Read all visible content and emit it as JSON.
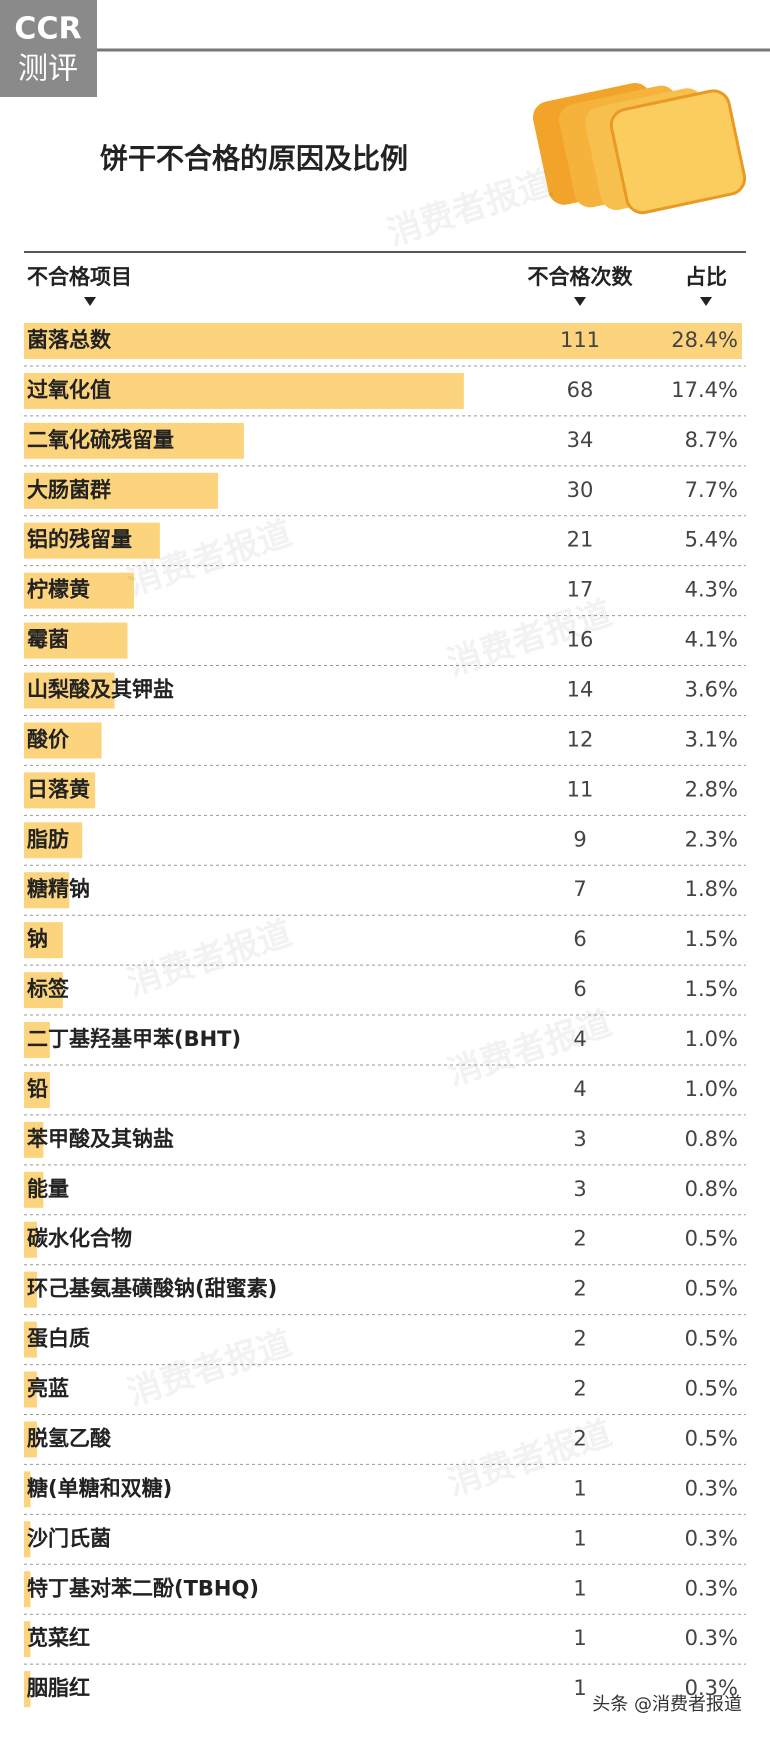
{
  "logo": {
    "top": "CCR",
    "bottom": "测评"
  },
  "watermark": "消费者报道",
  "footer": "头条 @消费者报道",
  "chart_data": {
    "type": "bar",
    "orientation": "horizontal",
    "title": "饼干不合格的原因及比例",
    "category_label": "不合格项目",
    "categories": [
      "菌落总数",
      "过氧化值",
      "二氧化硫残留量",
      "大肠菌群",
      "铝的残留量",
      "柠檬黄",
      "霉菌",
      "山梨酸及其钾盐",
      "酸价",
      "日落黄",
      "脂肪",
      "糖精钠",
      "钠",
      "标签",
      "二丁基羟基甲苯(BHT)",
      "铅",
      "苯甲酸及其钠盐",
      "能量",
      "碳水化合物",
      "环己基氨基磺酸钠(甜蜜素)",
      "蛋白质",
      "亮蓝",
      "脱氢乙酸",
      "糖(单糖和双糖)",
      "沙门氏菌",
      "特丁基对苯二酚(TBHQ)",
      "苋菜红",
      "胭脂红"
    ],
    "color": "#fcd47e",
    "series": [
      {
        "name": "不合格次数",
        "values": [
          111,
          68,
          34,
          30,
          21,
          17,
          16,
          14,
          12,
          11,
          9,
          7,
          6,
          6,
          4,
          4,
          3,
          3,
          2,
          2,
          2,
          2,
          2,
          1,
          1,
          1,
          1,
          1
        ]
      },
      {
        "name": "占比",
        "values": [
          28.4,
          17.4,
          8.7,
          7.7,
          5.4,
          4.3,
          4.1,
          3.6,
          3.1,
          2.8,
          2.3,
          1.8,
          1.5,
          1.5,
          1.0,
          1.0,
          0.8,
          0.8,
          0.5,
          0.5,
          0.5,
          0.5,
          0.5,
          0.3,
          0.3,
          0.3,
          0.3,
          0.3
        ],
        "value_labels": [
          "28.4%",
          "17.4%",
          "8.7%",
          "7.7%",
          "5.4%",
          "4.3%",
          "4.1%",
          "3.6%",
          "3.1%",
          "2.8%",
          "2.3%",
          "1.8%",
          "1.5%",
          "1.5%",
          "1.0%",
          "1.0%",
          "0.8%",
          "0.8%",
          "0.5%",
          "0.5%",
          "0.5%",
          "0.5%",
          "0.5%",
          "0.3%",
          "0.3%",
          "0.3%",
          "0.3%",
          "0.3%"
        ]
      }
    ]
  }
}
